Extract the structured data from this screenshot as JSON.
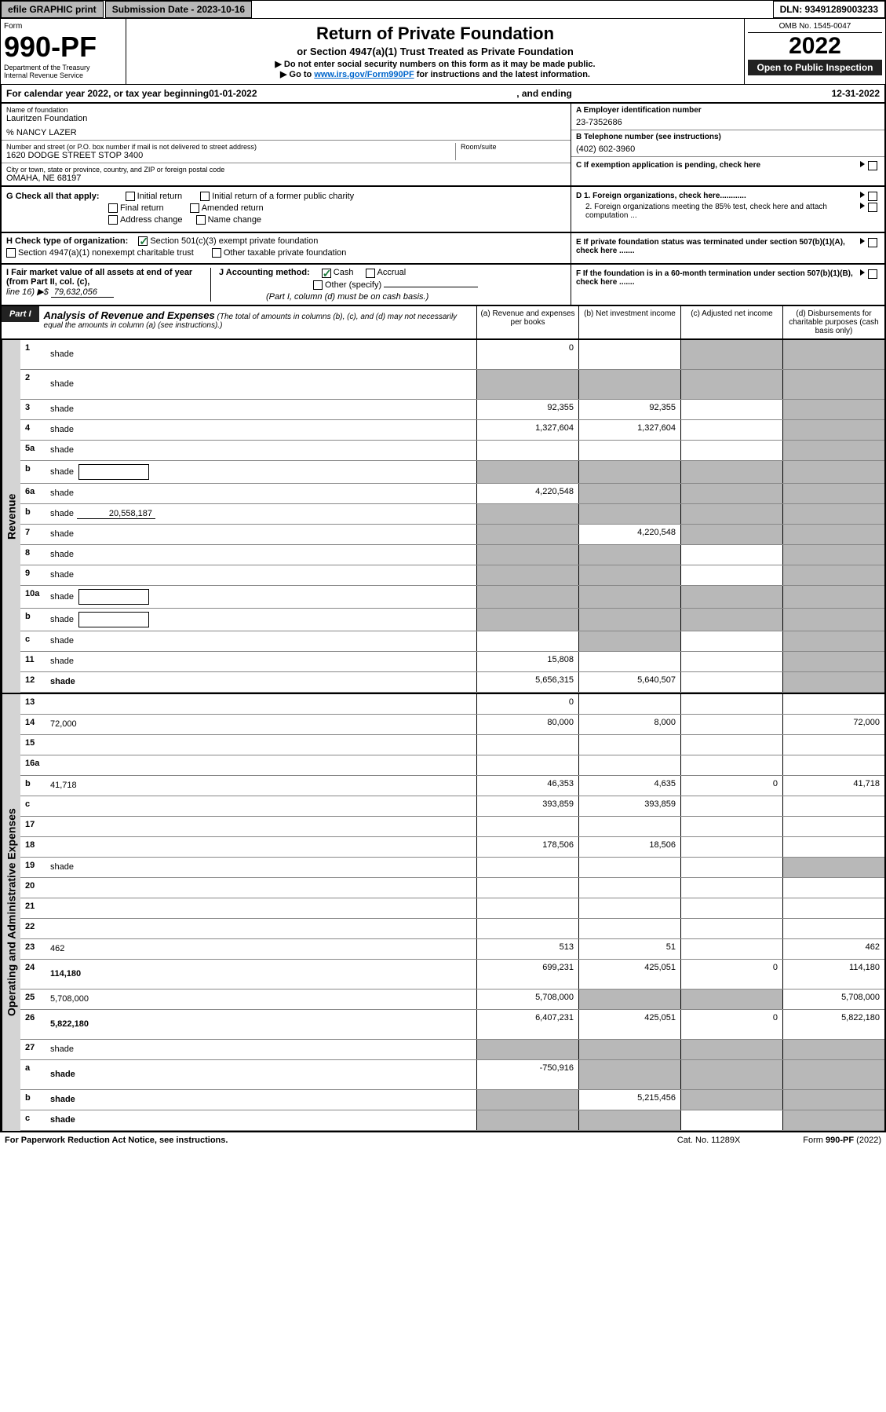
{
  "topbar": {
    "efile": "efile GRAPHIC print",
    "sub_label": "Submission Date - 2023-10-16",
    "dln_label": "DLN: 93491289003233"
  },
  "header": {
    "form_word": "Form",
    "form_num": "990-PF",
    "dept": "Department of the Treasury",
    "irs": "Internal Revenue Service",
    "title": "Return of Private Foundation",
    "subtitle": "or Section 4947(a)(1) Trust Treated as Private Foundation",
    "note1": "▶ Do not enter social security numbers on this form as it may be made public.",
    "note2_pre": "▶ Go to ",
    "note2_link": "www.irs.gov/Form990PF",
    "note2_post": " for instructions and the latest information.",
    "omb": "OMB No. 1545-0047",
    "year": "2022",
    "open": "Open to Public Inspection"
  },
  "calendar": {
    "text_pre": "For calendar year 2022, or tax year beginning ",
    "begin": "01-01-2022",
    "text_mid": " , and ending ",
    "end": "12-31-2022"
  },
  "info": {
    "name_label": "Name of foundation",
    "name": "Lauritzen Foundation",
    "care_of": "% NANCY LAZER",
    "addr_label": "Number and street (or P.O. box number if mail is not delivered to street address)",
    "addr": "1620 DODGE STREET STOP 3400",
    "room_label": "Room/suite",
    "city_label": "City or town, state or province, country, and ZIP or foreign postal code",
    "city": "OMAHA, NE  68197",
    "a_label": "A Employer identification number",
    "a_val": "23-7352686",
    "b_label": "B Telephone number (see instructions)",
    "b_val": "(402) 602-3960",
    "c_label": "C If exemption application is pending, check here"
  },
  "g": {
    "label": "G Check all that apply:",
    "opts": [
      "Initial return",
      "Initial return of a former public charity",
      "Final return",
      "Amended return",
      "Address change",
      "Name change"
    ]
  },
  "h": {
    "label": "H Check type of organization:",
    "opt1": "Section 501(c)(3) exempt private foundation",
    "opt2": "Section 4947(a)(1) nonexempt charitable trust",
    "opt3": "Other taxable private foundation"
  },
  "d": {
    "d1": "D 1. Foreign organizations, check here............",
    "d2": "2. Foreign organizations meeting the 85% test, check here and attach computation ...",
    "e": "E  If private foundation status was terminated under section 507(b)(1)(A), check here .......",
    "f": "F  If the foundation is in a 60-month termination under section 507(b)(1)(B), check here ......."
  },
  "i": {
    "label": "I Fair market value of all assets at end of year (from Part II, col. (c),",
    "line": "line 16) ▶$ ",
    "val": "79,632,056"
  },
  "j": {
    "label": "J Accounting method:",
    "cash": "Cash",
    "accrual": "Accrual",
    "other": "Other (specify)",
    "note": "(Part I, column (d) must be on cash basis.)"
  },
  "part1": {
    "badge": "Part I",
    "title": "Analysis of Revenue and Expenses",
    "title_note": "(The total of amounts in columns (b), (c), and (d) may not necessarily equal the amounts in column (a) (see instructions).)",
    "col_a": "(a)  Revenue and expenses per books",
    "col_b": "(b)  Net investment income",
    "col_c": "(c)  Adjusted net income",
    "col_d": "(d)  Disbursements for charitable purposes (cash basis only)"
  },
  "side": {
    "revenue": "Revenue",
    "expenses": "Operating and Administrative Expenses"
  },
  "rows": [
    {
      "n": "1",
      "d": "shade",
      "a": "0",
      "b": "",
      "c": "shade",
      "tall": true
    },
    {
      "n": "2",
      "d": "shade",
      "a": "shade",
      "b": "shade",
      "c": "shade",
      "tall": true,
      "desc_html": true
    },
    {
      "n": "3",
      "d": "shade",
      "a": "92,355",
      "b": "92,355",
      "c": ""
    },
    {
      "n": "4",
      "d": "shade",
      "a": "1,327,604",
      "b": "1,327,604",
      "c": ""
    },
    {
      "n": "5a",
      "d": "shade",
      "a": "",
      "b": "",
      "c": ""
    },
    {
      "n": "b",
      "d": "shade",
      "a": "shade",
      "b": "shade",
      "c": "shade",
      "inline_box": true
    },
    {
      "n": "6a",
      "d": "shade",
      "a": "4,220,548",
      "b": "shade",
      "c": "shade"
    },
    {
      "n": "b",
      "d": "shade",
      "a": "shade",
      "b": "shade",
      "c": "shade",
      "inline_val": "20,558,187"
    },
    {
      "n": "7",
      "d": "shade",
      "a": "shade",
      "b": "4,220,548",
      "c": "shade"
    },
    {
      "n": "8",
      "d": "shade",
      "a": "shade",
      "b": "shade",
      "c": ""
    },
    {
      "n": "9",
      "d": "shade",
      "a": "shade",
      "b": "shade",
      "c": ""
    },
    {
      "n": "10a",
      "d": "shade",
      "a": "shade",
      "b": "shade",
      "c": "shade",
      "inline_box": true
    },
    {
      "n": "b",
      "d": "shade",
      "a": "shade",
      "b": "shade",
      "c": "shade",
      "inline_box": true
    },
    {
      "n": "c",
      "d": "shade",
      "a": "",
      "b": "shade",
      "c": ""
    },
    {
      "n": "11",
      "d": "shade",
      "a": "15,808",
      "b": "",
      "c": ""
    },
    {
      "n": "12",
      "d": "shade",
      "a": "5,656,315",
      "b": "5,640,507",
      "c": "",
      "bold": true
    }
  ],
  "exp_rows": [
    {
      "n": "13",
      "d": "",
      "a": "0",
      "b": "",
      "c": ""
    },
    {
      "n": "14",
      "d": "72,000",
      "a": "80,000",
      "b": "8,000",
      "c": ""
    },
    {
      "n": "15",
      "d": "",
      "a": "",
      "b": "",
      "c": ""
    },
    {
      "n": "16a",
      "d": "",
      "a": "",
      "b": "",
      "c": ""
    },
    {
      "n": "b",
      "d": "41,718",
      "a": "46,353",
      "b": "4,635",
      "c": "0"
    },
    {
      "n": "c",
      "d": "",
      "a": "393,859",
      "b": "393,859",
      "c": ""
    },
    {
      "n": "17",
      "d": "",
      "a": "",
      "b": "",
      "c": ""
    },
    {
      "n": "18",
      "d": "",
      "a": "178,506",
      "b": "18,506",
      "c": ""
    },
    {
      "n": "19",
      "d": "shade",
      "a": "",
      "b": "",
      "c": ""
    },
    {
      "n": "20",
      "d": "",
      "a": "",
      "b": "",
      "c": ""
    },
    {
      "n": "21",
      "d": "",
      "a": "",
      "b": "",
      "c": ""
    },
    {
      "n": "22",
      "d": "",
      "a": "",
      "b": "",
      "c": ""
    },
    {
      "n": "23",
      "d": "462",
      "a": "513",
      "b": "51",
      "c": ""
    },
    {
      "n": "24",
      "d": "114,180",
      "a": "699,231",
      "b": "425,051",
      "c": "0",
      "bold": true,
      "tall": true
    },
    {
      "n": "25",
      "d": "5,708,000",
      "a": "5,708,000",
      "b": "shade",
      "c": "shade"
    },
    {
      "n": "26",
      "d": "5,822,180",
      "a": "6,407,231",
      "b": "425,051",
      "c": "0",
      "bold": true,
      "tall": true
    },
    {
      "n": "27",
      "d": "shade",
      "a": "shade",
      "b": "shade",
      "c": "shade"
    },
    {
      "n": "a",
      "d": "shade",
      "a": "-750,916",
      "b": "shade",
      "c": "shade",
      "bold": true,
      "tall": true
    },
    {
      "n": "b",
      "d": "shade",
      "a": "shade",
      "b": "5,215,456",
      "c": "shade",
      "bold": true
    },
    {
      "n": "c",
      "d": "shade",
      "a": "shade",
      "b": "shade",
      "c": "",
      "bold": true
    }
  ],
  "footer": {
    "left": "For Paperwork Reduction Act Notice, see instructions.",
    "mid": "Cat. No. 11289X",
    "right": "Form 990-PF (2022)"
  }
}
